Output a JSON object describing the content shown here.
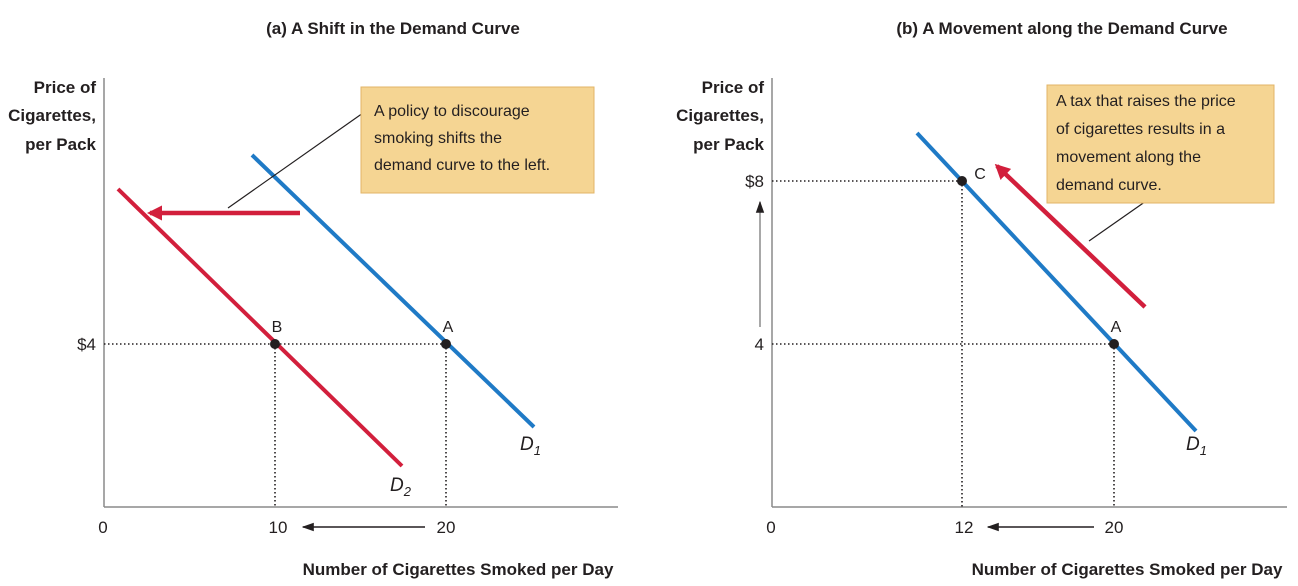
{
  "colors": {
    "blue": "#1f7ac6",
    "red": "#d21f3c",
    "note_bg": "#f5d593",
    "note_border": "#e2b467",
    "ink": "#231f20"
  },
  "chart_data": [
    {
      "type": "line",
      "title": "(a) A Shift in the Demand Curve",
      "xlabel": "Number of Cigarettes Smoked per Day",
      "ylabel": [
        "Price of",
        "Cigarettes,",
        "per Pack"
      ],
      "xlim": [
        0,
        30
      ],
      "ylim": [
        0,
        10
      ],
      "x_ticks": [
        {
          "value": 0,
          "label": "0"
        },
        {
          "value": 10,
          "label": "10"
        },
        {
          "value": 20,
          "label": "20"
        }
      ],
      "y_ticks": [
        {
          "value": 4,
          "label": "$4"
        }
      ],
      "series": [
        {
          "name": "D1",
          "color": "#1f7ac6",
          "x": [
            8.8,
            25.6
          ],
          "y": [
            8.6,
            2.1
          ]
        },
        {
          "name": "D2",
          "color": "#d21f3c",
          "x": [
            0.7,
            17.5
          ],
          "y": [
            7.9,
            1.0
          ]
        }
      ],
      "curve_labels": [
        {
          "text": "D",
          "sub": "1",
          "x": 24.8,
          "y": 1.2
        },
        {
          "text": "D",
          "sub": "2",
          "x": 17.3,
          "y": 0.2
        }
      ],
      "points": [
        {
          "label": "A",
          "x": 20,
          "y": 4
        },
        {
          "label": "B",
          "x": 10,
          "y": 4
        }
      ],
      "shift_arrow": {
        "from": [
          11.7,
          7.2
        ],
        "to": [
          2.3,
          7.2
        ]
      },
      "quantity_arrow": {
        "from": [
          19.0,
          -0.5
        ],
        "to": [
          11.8,
          -0.5
        ]
      },
      "annotation": {
        "lines": [
          "A policy to discourage",
          "smoking shifts the",
          "demand curve to the left."
        ],
        "pointer_to": [
          7.3,
          7.4
        ]
      }
    },
    {
      "type": "line",
      "title": "(b) A Movement along the Demand Curve",
      "xlabel": "Number of Cigarettes Smoked per Day",
      "ylabel": [
        "Price of",
        "Cigarettes,",
        "per Pack"
      ],
      "xlim": [
        0,
        30
      ],
      "ylim": [
        0,
        10
      ],
      "x_ticks": [
        {
          "value": 0,
          "label": "0"
        },
        {
          "value": 12,
          "label": "12"
        },
        {
          "value": 20,
          "label": "20"
        }
      ],
      "y_ticks": [
        {
          "value": 4,
          "label": "4"
        },
        {
          "value": 8,
          "label": "$8"
        }
      ],
      "series": [
        {
          "name": "D1",
          "color": "#1f7ac6",
          "x": [
            8.9,
            25.6
          ],
          "y": [
            9.0,
            2.0
          ]
        }
      ],
      "curve_labels": [
        {
          "text": "D",
          "sub": "1",
          "x": 24.8,
          "y": 1.2
        }
      ],
      "points": [
        {
          "label": "A",
          "x": 20,
          "y": 4
        },
        {
          "label": "C",
          "x": 12,
          "y": 8
        }
      ],
      "movement_arrow": {
        "from": [
          22.7,
          5.1
        ],
        "to": [
          14.0,
          8.6
        ]
      },
      "price_arrow": {
        "from": [
          -0.5,
          4.4
        ],
        "to": [
          -0.5,
          7.6
        ]
      },
      "quantity_arrow": {
        "from": [
          19.0,
          -0.5
        ],
        "to": [
          13.3,
          -0.5
        ]
      },
      "annotation": {
        "lines": [
          "A tax that raises the price",
          "of cigarettes results in a",
          "movement along the",
          "demand curve."
        ],
        "pointer_to": [
          17.0,
          6.4
        ]
      }
    }
  ]
}
